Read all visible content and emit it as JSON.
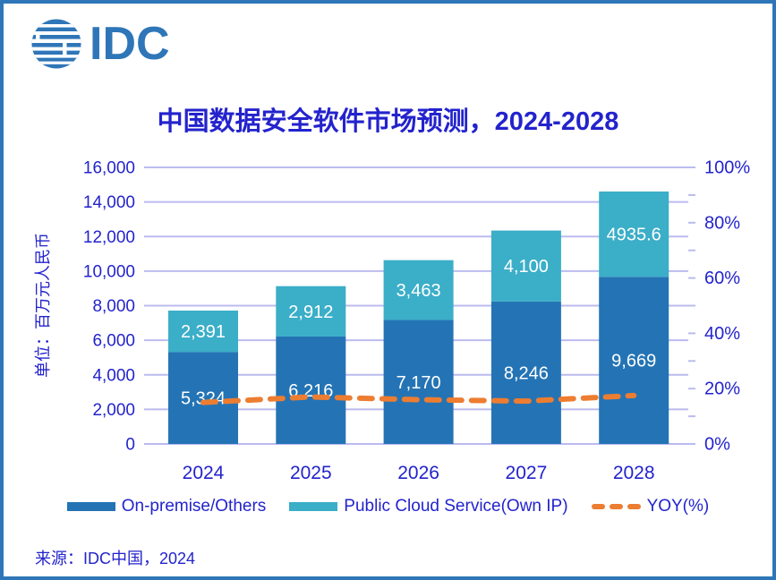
{
  "page": {
    "logo_text": "IDC",
    "source_text": "来源：IDC中国，2024",
    "background": "#FFFFFF",
    "border_color": "#2E76B8"
  },
  "chart_data": {
    "type": "bar",
    "subtype": "stacked-columns-with-yoy-line",
    "title": "中国数据安全软件市场预测，2024-2028",
    "categories": [
      "2024",
      "2025",
      "2026",
      "2027",
      "2028"
    ],
    "series": [
      {
        "name": "On-premise/Others",
        "role": "bar-bottom-segment",
        "color": "#2474B5",
        "values": [
          5324,
          6216,
          7170,
          8246,
          9669
        ],
        "labels": [
          "5,324",
          "6,216",
          "7,170",
          "8,246",
          "9,669"
        ]
      },
      {
        "name": "Public Cloud Service(Own IP)",
        "role": "bar-top-segment",
        "color": "#3BAEC8",
        "values": [
          2391,
          2912,
          3463,
          4100,
          4935.6
        ],
        "labels": [
          "2,391",
          "2,912",
          "3,463",
          "4,100",
          "4935.6"
        ]
      },
      {
        "name": "YOY(%)",
        "role": "line",
        "axis": "right",
        "color": "#ED7D31",
        "line_style": "dashed",
        "values_estimated_pct": [
          15,
          17,
          16,
          15.5,
          17.5
        ]
      }
    ],
    "left_axis": {
      "title": "单位：百万元人民币",
      "min": 0,
      "max": 16000,
      "step": 2000,
      "tick_labels": [
        "0",
        "2,000",
        "4,000",
        "6,000",
        "8,000",
        "10,000",
        "12,000",
        "14,000",
        "16,000"
      ]
    },
    "right_axis": {
      "min": 0,
      "max": 100,
      "step": 20,
      "minor_step": 10,
      "tick_labels": [
        "0%",
        "20%",
        "40%",
        "60%",
        "80%",
        "100%"
      ]
    },
    "gridlines": {
      "color": "#BBBBEF",
      "orientation": "horizontal"
    },
    "axis_text_color": "#2323CD",
    "value_label_color": "#FFFFFF",
    "legend_position": "bottom"
  }
}
